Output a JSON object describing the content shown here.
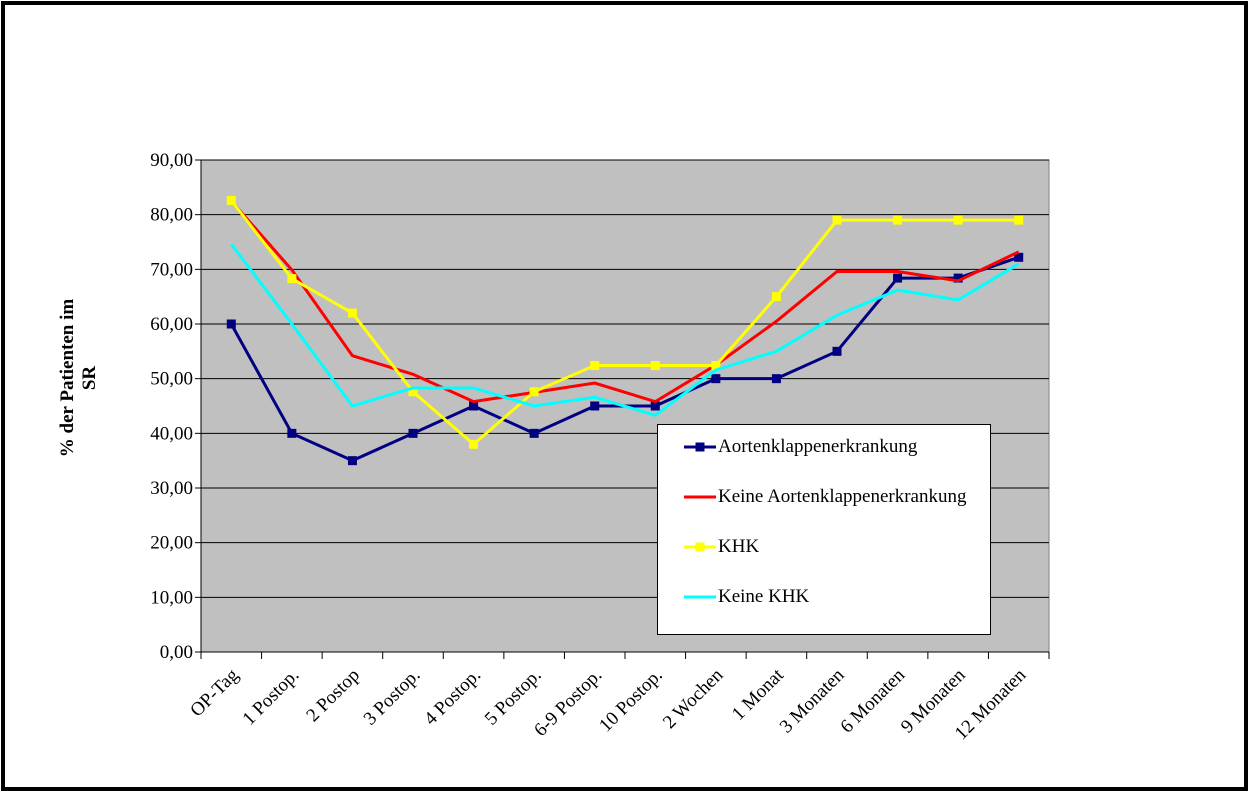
{
  "chart_data": {
    "type": "line",
    "ylabel": "% der Patienten im SR",
    "categories": [
      "OP-Tag",
      "1 Postop.",
      "2 Postop",
      "3 Postop.",
      "4 Postop.",
      "5 Postop.",
      "6-9 Postop.",
      "10 Postop.",
      "2 Wochen",
      "1 Monat",
      "3 Monaten",
      "6 Monaten",
      "9 Monaten",
      "12 Monaten"
    ],
    "series": [
      {
        "name": "Aortenklappenerkrankung",
        "color": "#000080",
        "marker": "square",
        "values": [
          60,
          40,
          35,
          40,
          45,
          40,
          45,
          45,
          50,
          50,
          55,
          68.4,
          68.4,
          72.2
        ]
      },
      {
        "name": "Keine Aortenklappenerkrankung",
        "color": "#ff0000",
        "values": [
          82.5,
          69.9,
          54.2,
          50.8,
          45.8,
          47.5,
          49.2,
          45.8,
          52.5,
          60.5,
          69.6,
          69.6,
          67.9,
          73.2
        ]
      },
      {
        "name": "KHK",
        "color": "#ffff00",
        "marker": "square",
        "values": [
          82.6,
          68.3,
          62,
          47.6,
          38,
          47.6,
          52.4,
          52.4,
          52.4,
          65,
          79,
          79,
          79,
          79
        ]
      },
      {
        "name": "Keine KHK",
        "color": "#00ffff",
        "values": [
          74.6,
          60,
          45,
          48.3,
          48.3,
          45,
          46.6,
          43.3,
          51.6,
          55,
          61.6,
          66.2,
          64.4,
          71
        ]
      }
    ],
    "ylim": [
      0,
      90
    ],
    "yticks": [
      {
        "value": 0,
        "label": "0,00"
      },
      {
        "value": 10,
        "label": "10,00"
      },
      {
        "value": 20,
        "label": "20,00"
      },
      {
        "value": 30,
        "label": "30,00"
      },
      {
        "value": 40,
        "label": "40,00"
      },
      {
        "value": 50,
        "label": "50,00"
      },
      {
        "value": 60,
        "label": "60,00"
      },
      {
        "value": 70,
        "label": "70,00"
      },
      {
        "value": 80,
        "label": "80,00"
      },
      {
        "value": 90,
        "label": "90,00"
      }
    ],
    "grid": true,
    "legend": "lower right"
  }
}
